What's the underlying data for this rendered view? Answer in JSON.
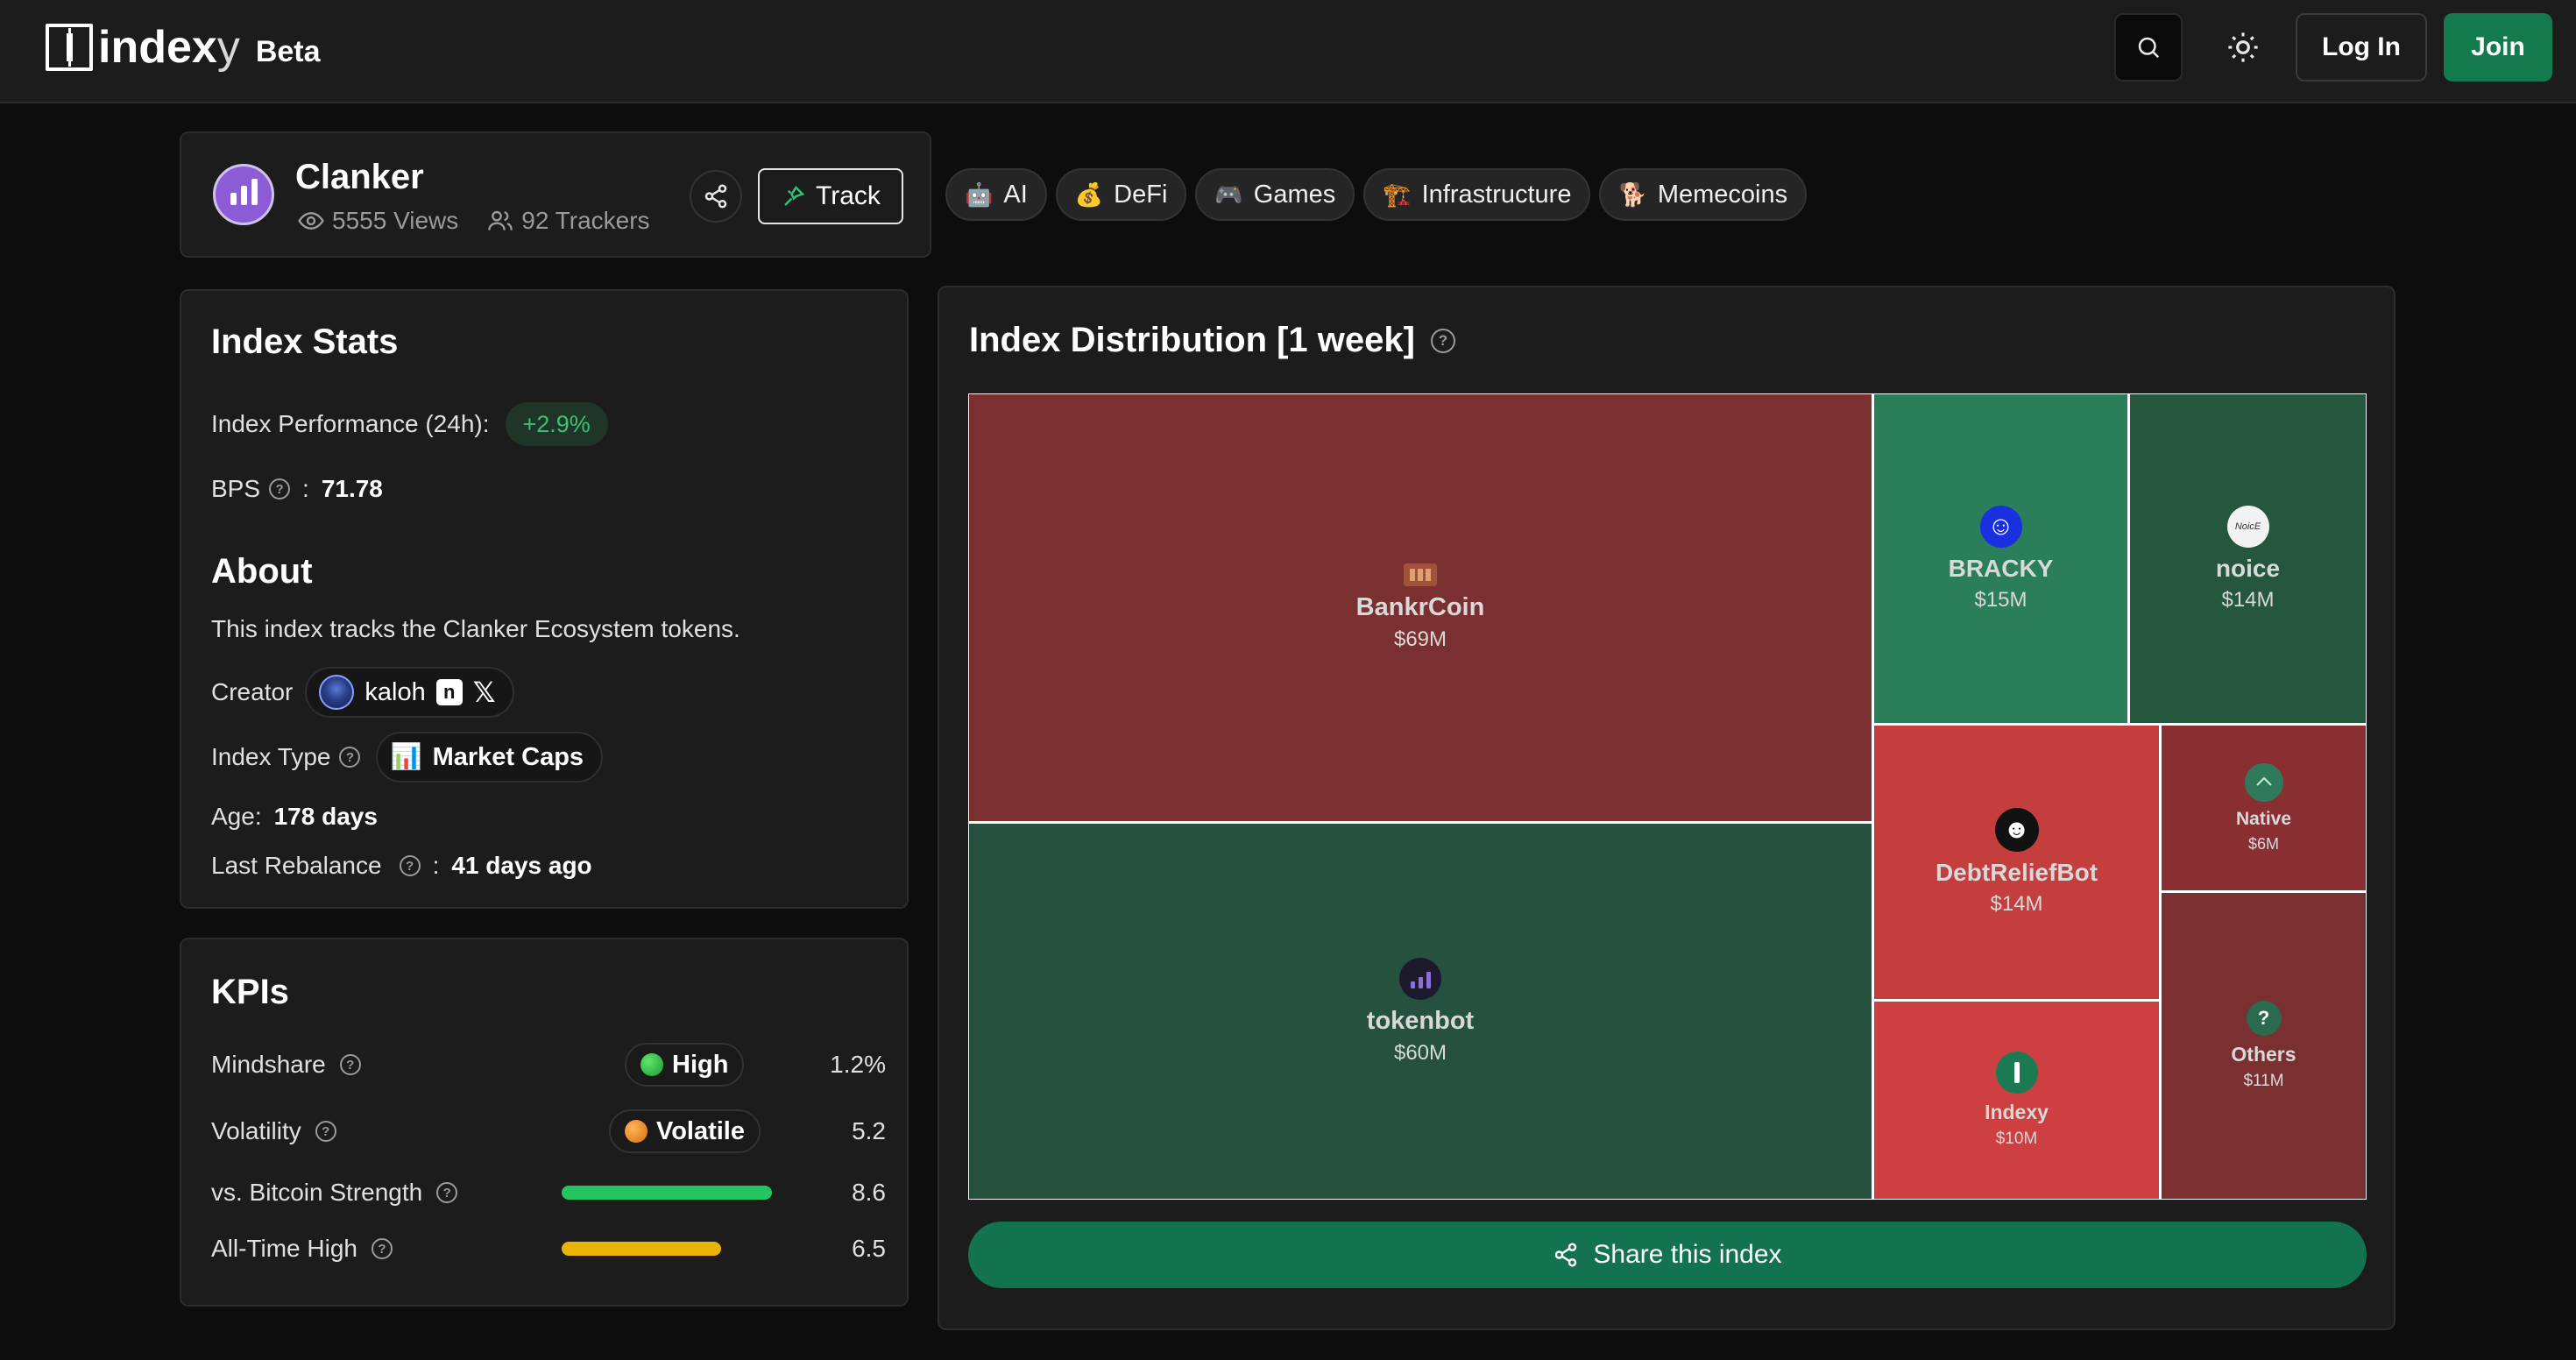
{
  "brand": {
    "logo_text": "index",
    "logo_tail": "y",
    "beta": "Beta"
  },
  "nav": {
    "login": "Log In",
    "join": "Join"
  },
  "index": {
    "name": "Clanker",
    "views": "5555 Views",
    "trackers": "92 Trackers",
    "track_label": "Track"
  },
  "tags": [
    {
      "emoji": "🤖",
      "label": "AI"
    },
    {
      "emoji": "💰",
      "label": "DeFi"
    },
    {
      "emoji": "🎮",
      "label": "Games"
    },
    {
      "emoji": "🏗️",
      "label": "Infrastructure"
    },
    {
      "emoji": "🐕",
      "label": "Memecoins"
    }
  ],
  "stats": {
    "title": "Index Stats",
    "performance_label": "Index Performance (24h):",
    "performance_value": "+2.9%",
    "bps_label": "BPS",
    "bps_sep": ":",
    "bps_value": "71.78",
    "about_title": "About",
    "about_text": "This index tracks the Clanker Ecosystem tokens.",
    "creator_label": "Creator",
    "creator_name": "kaloh",
    "creator_social_n": "n",
    "creator_social_x": "𝕏",
    "type_label": "Index Type",
    "type_emoji": "📊",
    "type_value": "Market Caps",
    "age_label": "Age:",
    "age_value": "178 days",
    "rebalance_label": "Last Rebalance",
    "rebalance_sep": ":",
    "rebalance_value": "41 days ago"
  },
  "kpis": {
    "title": "KPIs",
    "mindshare": {
      "label": "Mindshare",
      "pill": "High",
      "value": "1.2%",
      "color": "#22b33a"
    },
    "volatility": {
      "label": "Volatility",
      "pill": "Volatile",
      "value": "5.2",
      "color": "#f08a1c"
    },
    "btc_strength": {
      "label": "vs. Bitcoin Strength",
      "value": "8.6",
      "color": "#22c55e",
      "fraction": 1.0
    },
    "ath": {
      "label": "All-Time High",
      "value": "6.5",
      "color": "#eab308",
      "fraction": 0.76
    }
  },
  "distribution": {
    "title": "Index Distribution [1 week]",
    "tiles": [
      {
        "name": "BankrCoin",
        "value": "$69M",
        "color": "#7a2f31"
      },
      {
        "name": "tokenbot",
        "value": "$60M",
        "color": "#25513e"
      },
      {
        "name": "BRACKY",
        "value": "$15M",
        "color": "#2a7e5a"
      },
      {
        "name": "noice",
        "value": "$14M",
        "icon_text": "NoicE",
        "color": "#25573f"
      },
      {
        "name": "DebtReliefBot",
        "value": "$14M",
        "color": "#c53e3e"
      },
      {
        "name": "Native",
        "value": "$6M",
        "color": "#8a2f31"
      },
      {
        "name": "Indexy",
        "value": "$10M",
        "color": "#cd3f40"
      },
      {
        "name": "Others",
        "value": "$11M",
        "icon_text": "?",
        "color": "#7a2f31"
      }
    ],
    "share_label": "Share this index"
  },
  "colors": {
    "accent_green": "#137a4e",
    "card_bg": "#1c1c1c",
    "page_bg": "#0d0d0d"
  }
}
